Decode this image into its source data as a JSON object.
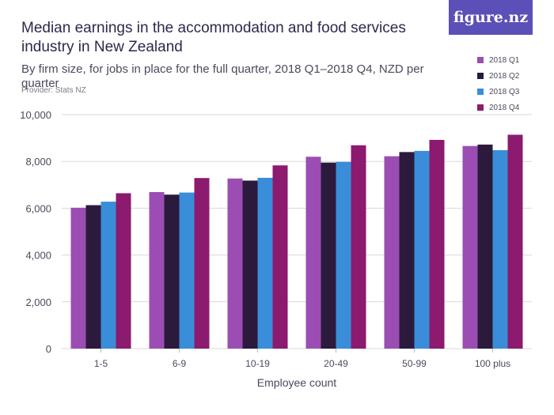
{
  "header": {
    "title": "Median earnings in the accommodation and food services industry in New Zealand",
    "subtitle": "By firm size, for jobs in place for the full quarter, 2018 Q1–2018 Q4, NZD per quarter",
    "provider": "Provider: Stats NZ",
    "logo_text": "figure.nz"
  },
  "colors": {
    "logo_bg": "#5b4fb8",
    "gridline": "#d9d9d9",
    "axis_text": "#4a4a5e"
  },
  "chart_data": {
    "type": "bar",
    "xlabel": "Employee count",
    "ylabel": "",
    "ylim": [
      0,
      10000
    ],
    "yticks": [
      0,
      2000,
      4000,
      6000,
      8000,
      10000
    ],
    "ytick_labels": [
      "0",
      "2,000",
      "4,000",
      "6,000",
      "8,000",
      "10,000"
    ],
    "grid": true,
    "legend_position": "top-right",
    "categories": [
      "1-5",
      "6-9",
      "10-19",
      "20-49",
      "50-99",
      "100 plus"
    ],
    "series": [
      {
        "name": "2018 Q1",
        "color": "#9b4db3",
        "values": [
          6020,
          6690,
          7270,
          8200,
          8220,
          8660
        ]
      },
      {
        "name": "2018 Q2",
        "color": "#2b1a3c",
        "values": [
          6130,
          6580,
          7180,
          7950,
          8400,
          8720
        ]
      },
      {
        "name": "2018 Q3",
        "color": "#3a8dd8",
        "values": [
          6280,
          6670,
          7300,
          7980,
          8450,
          8480
        ]
      },
      {
        "name": "2018 Q4",
        "color": "#8c1a6e",
        "values": [
          6640,
          7290,
          7830,
          8690,
          8920,
          9140
        ]
      }
    ]
  }
}
